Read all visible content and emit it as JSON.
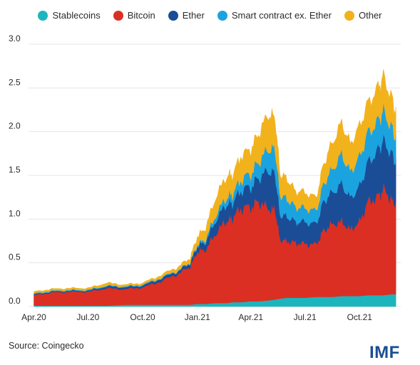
{
  "colors": {
    "stablecoins": "#1db5bd",
    "bitcoin": "#db2f23",
    "ether": "#1a4d96",
    "smart": "#1ba3e0",
    "other": "#f2b21c",
    "grid": "#e4e4e4",
    "logo": "#1a4d96"
  },
  "source": "Source: Coingecko",
  "logo_text": "IMF",
  "chart_data": {
    "type": "area",
    "stacked": true,
    "title": "",
    "xlabel": "",
    "ylabel": "",
    "ylim": [
      0,
      3.0
    ],
    "yticks": [
      "0.0",
      "0.5",
      "1.0",
      "1.5",
      "2.0",
      "2.5",
      "3.0"
    ],
    "grid": true,
    "legend_position": "top",
    "x_tick_labels": [
      "Apr.20",
      "Jul.20",
      "Oct.20",
      "Jan.21",
      "Apr.21",
      "Jul.21",
      "Oct.21"
    ],
    "x_tick_dates": [
      "2020-04-01",
      "2020-07-01",
      "2020-10-01",
      "2021-01-01",
      "2021-04-01",
      "2021-07-01",
      "2021-10-01"
    ],
    "x": [
      "2020-04-01",
      "2020-05-01",
      "2020-06-01",
      "2020-07-01",
      "2020-08-01",
      "2020-09-01",
      "2020-10-01",
      "2020-11-01",
      "2020-12-01",
      "2020-12-20",
      "2021-01-01",
      "2021-01-15",
      "2021-02-01",
      "2021-02-20",
      "2021-03-01",
      "2021-03-15",
      "2021-04-01",
      "2021-04-14",
      "2021-05-01",
      "2021-05-12",
      "2021-05-20",
      "2021-06-01",
      "2021-06-15",
      "2021-07-01",
      "2021-07-20",
      "2021-08-01",
      "2021-08-15",
      "2021-09-01",
      "2021-09-15",
      "2021-10-01",
      "2021-10-15",
      "2021-11-01",
      "2021-11-10",
      "2021-11-25",
      "2021-12-01"
    ],
    "series": [
      {
        "name": "Stablecoins",
        "values": [
          0.01,
          0.01,
          0.01,
          0.01,
          0.01,
          0.02,
          0.02,
          0.02,
          0.02,
          0.02,
          0.03,
          0.03,
          0.04,
          0.04,
          0.05,
          0.05,
          0.06,
          0.06,
          0.07,
          0.08,
          0.09,
          0.1,
          0.1,
          0.1,
          0.11,
          0.11,
          0.11,
          0.12,
          0.12,
          0.12,
          0.13,
          0.13,
          0.13,
          0.14,
          0.14
        ]
      },
      {
        "name": "Bitcoin",
        "values": [
          0.12,
          0.15,
          0.16,
          0.16,
          0.2,
          0.18,
          0.2,
          0.27,
          0.36,
          0.44,
          0.6,
          0.62,
          0.8,
          0.95,
          0.97,
          1.08,
          1.08,
          1.15,
          1.05,
          1.03,
          0.68,
          0.65,
          0.63,
          0.62,
          0.6,
          0.76,
          0.83,
          0.85,
          0.76,
          0.85,
          1.07,
          1.13,
          1.22,
          1.08,
          1.02
        ]
      },
      {
        "name": "Ether",
        "values": [
          0.01,
          0.01,
          0.01,
          0.01,
          0.02,
          0.02,
          0.02,
          0.03,
          0.03,
          0.04,
          0.06,
          0.09,
          0.15,
          0.19,
          0.17,
          0.2,
          0.23,
          0.27,
          0.43,
          0.41,
          0.28,
          0.28,
          0.24,
          0.25,
          0.23,
          0.33,
          0.36,
          0.43,
          0.36,
          0.4,
          0.45,
          0.53,
          0.55,
          0.52,
          0.47
        ]
      },
      {
        "name": "Smart contract ex. Ether",
        "values": [
          0.01,
          0.01,
          0.01,
          0.01,
          0.01,
          0.01,
          0.01,
          0.01,
          0.01,
          0.01,
          0.02,
          0.03,
          0.06,
          0.08,
          0.1,
          0.12,
          0.15,
          0.18,
          0.25,
          0.28,
          0.23,
          0.2,
          0.17,
          0.16,
          0.15,
          0.2,
          0.26,
          0.34,
          0.3,
          0.34,
          0.34,
          0.33,
          0.34,
          0.3,
          0.27
        ]
      },
      {
        "name": "Other",
        "values": [
          0.02,
          0.02,
          0.02,
          0.02,
          0.03,
          0.02,
          0.02,
          0.03,
          0.04,
          0.05,
          0.09,
          0.13,
          0.2,
          0.24,
          0.21,
          0.27,
          0.28,
          0.32,
          0.4,
          0.35,
          0.24,
          0.23,
          0.18,
          0.18,
          0.15,
          0.22,
          0.3,
          0.36,
          0.32,
          0.35,
          0.34,
          0.38,
          0.39,
          0.33,
          0.29
        ]
      }
    ]
  }
}
